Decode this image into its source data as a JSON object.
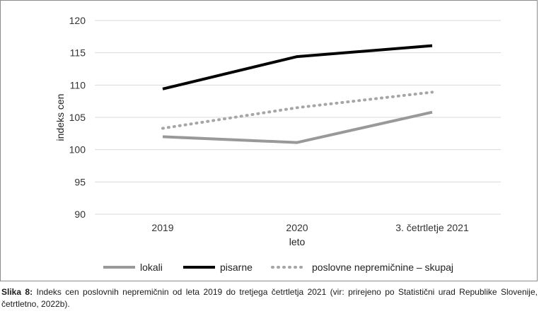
{
  "chart_data": {
    "type": "line",
    "categories": [
      "2019",
      "2020",
      "3. četrtletje 2021"
    ],
    "series": [
      {
        "name": "lokali",
        "values": [
          102.0,
          101.1,
          105.8
        ],
        "color": "#999999",
        "style": "solid"
      },
      {
        "name": "pisarne",
        "values": [
          109.4,
          114.4,
          116.1
        ],
        "color": "#000000",
        "style": "solid"
      },
      {
        "name": "poslovne nepremičnine – skupaj",
        "values": [
          103.3,
          106.5,
          108.9
        ],
        "color": "#a6a6a6",
        "style": "dotted"
      }
    ],
    "xlabel": "leto",
    "ylabel": "indeks cen",
    "ylim": [
      90,
      120
    ],
    "yticks": [
      90,
      95,
      100,
      105,
      110,
      115,
      120
    ],
    "grid": true,
    "legend_placement": "bottom"
  },
  "caption": {
    "label": "Slika 8:",
    "text": " Indeks cen poslovnih nepremičnin od leta 2019 do tretjega četrtletja 2021 (vir: prirejeno po Statistični urad Republike Slovenije, četrtletno, 2022b)."
  }
}
